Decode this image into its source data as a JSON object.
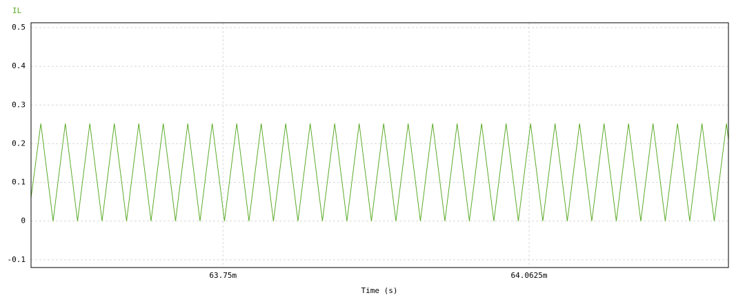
{
  "chart_data": {
    "type": "line",
    "x_label": "Time (s)",
    "x": [
      0.063554,
      0.063564,
      0.0635765,
      0.063589,
      0.0636015,
      0.063614,
      0.0636265,
      0.063639,
      0.0636515,
      0.063664,
      0.0636765,
      0.063689,
      0.0637015,
      0.063714,
      0.0637265,
      0.063739,
      0.0637515,
      0.063764,
      0.0637765,
      0.063789,
      0.0638015,
      0.063814,
      0.0638265,
      0.063839,
      0.0638515,
      0.063864,
      0.0638765,
      0.063889,
      0.0639015,
      0.063914,
      0.0639265,
      0.063939,
      0.0639515,
      0.063964,
      0.0639765,
      0.063989,
      0.0640015,
      0.064014,
      0.0640265,
      0.064039,
      0.0640515,
      0.064064,
      0.0640765,
      0.064089,
      0.0641015,
      0.064114,
      0.0641265,
      0.064139,
      0.0641515,
      0.064164,
      0.0641765,
      0.064189,
      0.0642015,
      0.064214,
      0.0642265,
      0.064239,
      0.0642515,
      0.064264,
      0.064266
    ],
    "series": [
      {
        "name": "IL",
        "color": "#5aaa28",
        "values": [
          0.06,
          0.252,
          0,
          0.252,
          0,
          0.252,
          0,
          0.252,
          0,
          0.252,
          0,
          0.252,
          0,
          0.252,
          0,
          0.252,
          0,
          0.252,
          0,
          0.252,
          0,
          0.252,
          0,
          0.252,
          0,
          0.252,
          0,
          0.252,
          0,
          0.252,
          0,
          0.252,
          0,
          0.252,
          0,
          0.252,
          0,
          0.252,
          0,
          0.252,
          0,
          0.252,
          0,
          0.252,
          0,
          0.252,
          0,
          0.252,
          0,
          0.252,
          0,
          0.252,
          0,
          0.252,
          0,
          0.252,
          0,
          0.252,
          0.21
        ]
      }
    ],
    "xlim": [
      0.063554,
      0.064266
    ],
    "xticks": [
      {
        "value": 0.06375,
        "label": "63.75m"
      },
      {
        "value": 0.0640625,
        "label": "64.0625m"
      }
    ],
    "ylim": [
      -0.12,
      0.5125
    ],
    "yticks": [
      0.5,
      0.4,
      0.3,
      0.2,
      0.1,
      0,
      -0.1
    ],
    "grid": true
  }
}
